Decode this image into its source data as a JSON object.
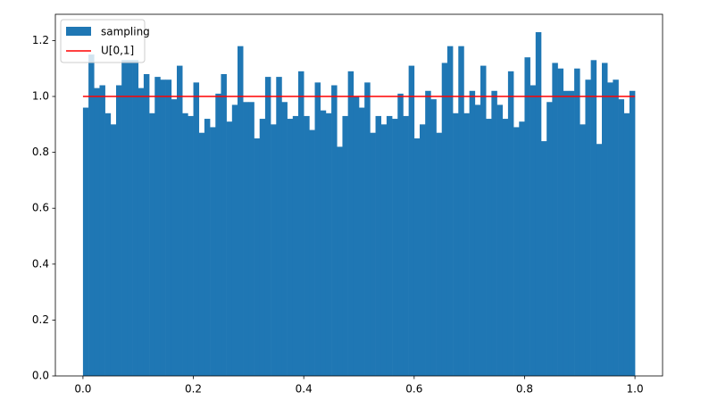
{
  "chart_data": {
    "type": "histogram",
    "bins": [
      0,
      0.01,
      0.02,
      0.03,
      0.04,
      0.05,
      0.06,
      0.07,
      0.08,
      0.09,
      0.1,
      0.11,
      0.12,
      0.13,
      0.14,
      0.15,
      0.16,
      0.17,
      0.18,
      0.19,
      0.2,
      0.21,
      0.22,
      0.23,
      0.24,
      0.25,
      0.26,
      0.27,
      0.28,
      0.29,
      0.3,
      0.31,
      0.32,
      0.33,
      0.34,
      0.35,
      0.36,
      0.37,
      0.38,
      0.39,
      0.4,
      0.41,
      0.42,
      0.43,
      0.44,
      0.45,
      0.46,
      0.47,
      0.48,
      0.49,
      0.5,
      0.51,
      0.52,
      0.53,
      0.54,
      0.55,
      0.56,
      0.57,
      0.58,
      0.59,
      0.6,
      0.61,
      0.62,
      0.63,
      0.64,
      0.65,
      0.66,
      0.67,
      0.68,
      0.69,
      0.7,
      0.71,
      0.72,
      0.73,
      0.74,
      0.75,
      0.76,
      0.77,
      0.78,
      0.79,
      0.8,
      0.81,
      0.82,
      0.83,
      0.84,
      0.85,
      0.86,
      0.87,
      0.88,
      0.89,
      0.9,
      0.91,
      0.92,
      0.93,
      0.94,
      0.95,
      0.96,
      0.97,
      0.98,
      0.99,
      1
    ],
    "series": [
      {
        "name": "sampling",
        "color": "#1f77b4",
        "values": [
          0.96,
          1.15,
          1.03,
          1.04,
          0.94,
          0.9,
          1.04,
          1.13,
          1.13,
          1.13,
          1.03,
          1.08,
          0.94,
          1.07,
          1.06,
          1.06,
          0.99,
          1.11,
          0.94,
          0.93,
          1.05,
          0.87,
          0.92,
          0.89,
          1.01,
          1.08,
          0.91,
          0.97,
          1.18,
          0.98,
          0.98,
          0.85,
          0.92,
          1.07,
          0.9,
          1.07,
          0.98,
          0.92,
          0.93,
          1.09,
          0.93,
          0.88,
          1.05,
          0.95,
          0.94,
          1.04,
          0.82,
          0.93,
          1.09,
          1.0,
          0.96,
          1.05,
          0.87,
          0.93,
          0.9,
          0.93,
          0.92,
          1.01,
          0.93,
          1.11,
          0.85,
          0.9,
          1.02,
          0.99,
          0.87,
          1.12,
          1.18,
          0.94,
          1.18,
          0.94,
          1.02,
          0.97,
          1.11,
          0.92,
          1.02,
          0.97,
          0.92,
          1.09,
          0.89,
          0.91,
          1.14,
          1.04,
          1.23,
          0.84,
          0.98,
          1.12,
          1.1,
          1.02,
          1.02,
          1.1,
          0.9,
          1.06,
          1.13,
          0.83,
          1.12,
          1.05,
          1.06,
          0.99,
          0.94,
          1.02
        ]
      }
    ],
    "overlay": {
      "name": "U[0,1]",
      "color": "#ff0000",
      "x": [
        0,
        1
      ],
      "values": [
        1,
        1
      ]
    },
    "xlim": [
      -0.05,
      1.05
    ],
    "xticks": [
      {
        "value": 0,
        "label": "0.0"
      },
      0.2,
      0.4,
      0.6,
      0.8,
      {
        "value": 1,
        "label": "1.0"
      }
    ],
    "ylim": [
      0,
      1.294
    ],
    "yticks": [
      {
        "value": 0,
        "label": "0.0"
      },
      0.2,
      0.4,
      0.6,
      0.8,
      {
        "value": 1,
        "label": "1.0"
      },
      1.2
    ],
    "legend": "upper left"
  }
}
